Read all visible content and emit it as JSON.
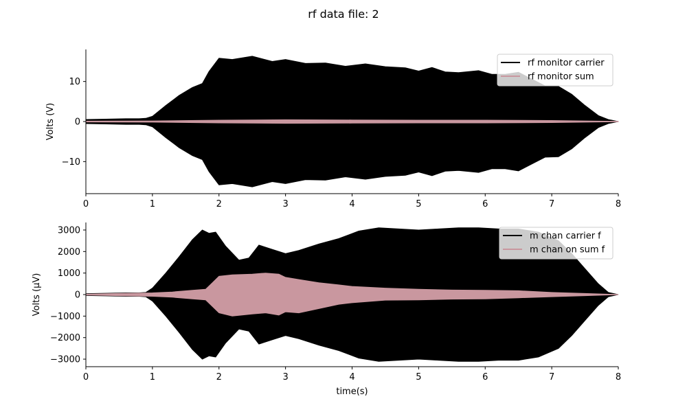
{
  "figure": {
    "title": "rf data file: 2"
  },
  "colors": {
    "carrier": "#000000",
    "sum": "#c9979f",
    "legend_frame": "#cccccc"
  },
  "chart_data": [
    {
      "type": "area",
      "ylabel": "Volts (V)",
      "xlabel": "",
      "xlim": [
        0,
        8
      ],
      "ylim": [
        -18,
        18
      ],
      "xticks": [
        0,
        1,
        2,
        3,
        4,
        5,
        6,
        7,
        8
      ],
      "yticks": [
        -10,
        0,
        10
      ],
      "ytick_labels": [
        "−10",
        "0",
        "10"
      ],
      "grid": false,
      "legend_position": "top-right",
      "series": [
        {
          "name": "rf monitor carrier",
          "color": "#000000",
          "x": [
            0,
            0.3,
            0.6,
            0.8,
            0.9,
            1.0,
            1.2,
            1.4,
            1.6,
            1.75,
            1.85,
            2.0,
            2.2,
            2.5,
            2.8,
            3.0,
            3.3,
            3.6,
            3.9,
            4.2,
            4.5,
            4.8,
            5.0,
            5.2,
            5.4,
            5.6,
            5.9,
            6.1,
            6.3,
            6.5,
            6.7,
            6.9,
            7.1,
            7.3,
            7.5,
            7.7,
            7.85,
            8.0
          ],
          "upper": [
            0.5,
            0.6,
            0.7,
            0.7,
            0.8,
            1.3,
            4.0,
            6.5,
            8.5,
            9.5,
            12.5,
            15.8,
            15.5,
            16.3,
            15.0,
            15.5,
            14.5,
            14.6,
            13.8,
            14.4,
            13.7,
            13.4,
            12.6,
            13.5,
            12.4,
            12.2,
            12.7,
            11.8,
            11.8,
            12.3,
            10.6,
            8.9,
            8.8,
            6.8,
            4.0,
            1.5,
            0.5,
            0.0
          ],
          "lower": [
            -0.5,
            -0.6,
            -0.7,
            -0.7,
            -0.8,
            -1.3,
            -4.0,
            -6.5,
            -8.5,
            -9.5,
            -12.5,
            -15.8,
            -15.5,
            -16.3,
            -15.0,
            -15.5,
            -14.5,
            -14.6,
            -13.8,
            -14.4,
            -13.7,
            -13.4,
            -12.6,
            -13.5,
            -12.4,
            -12.2,
            -12.7,
            -11.8,
            -11.8,
            -12.3,
            -10.6,
            -8.9,
            -8.8,
            -6.8,
            -4.0,
            -1.5,
            -0.5,
            0.0
          ]
        },
        {
          "name": "rf monitor sum",
          "color": "#c9979f",
          "x": [
            0,
            1,
            2,
            3,
            4,
            5,
            6,
            7,
            8
          ],
          "upper": [
            0.1,
            0.15,
            0.35,
            0.45,
            0.4,
            0.35,
            0.35,
            0.25,
            0.05
          ],
          "lower": [
            -0.1,
            -0.15,
            -0.35,
            -0.45,
            -0.4,
            -0.35,
            -0.35,
            -0.25,
            -0.05
          ]
        }
      ]
    },
    {
      "type": "area",
      "ylabel": "Volts (μV)",
      "xlabel": "time(s)",
      "xlim": [
        0,
        8
      ],
      "ylim": [
        -3350,
        3350
      ],
      "xticks": [
        0,
        1,
        2,
        3,
        4,
        5,
        6,
        7,
        8
      ],
      "yticks": [
        -3000,
        -2000,
        -1000,
        0,
        1000,
        2000,
        3000
      ],
      "ytick_labels": [
        "−3000",
        "−2000",
        "−1000",
        "0",
        "1000",
        "2000",
        "3000"
      ],
      "grid": false,
      "legend_position": "top-right",
      "series": [
        {
          "name": "m chan carrier f",
          "color": "#000000",
          "x": [
            0,
            0.3,
            0.6,
            0.8,
            0.9,
            1.0,
            1.2,
            1.4,
            1.6,
            1.75,
            1.85,
            1.95,
            2.1,
            2.3,
            2.45,
            2.6,
            2.8,
            3.0,
            3.2,
            3.5,
            3.8,
            4.1,
            4.4,
            4.7,
            5.0,
            5.3,
            5.6,
            5.9,
            6.2,
            6.5,
            6.8,
            7.1,
            7.3,
            7.5,
            7.7,
            7.85,
            8.0
          ],
          "upper": [
            40,
            60,
            80,
            80,
            100,
            300,
            1000,
            1750,
            2550,
            3000,
            2850,
            2900,
            2250,
            1600,
            1700,
            2300,
            2100,
            1900,
            2050,
            2350,
            2600,
            2950,
            3100,
            3050,
            3000,
            3050,
            3100,
            3100,
            3050,
            3050,
            2900,
            2500,
            1900,
            1200,
            500,
            100,
            0
          ],
          "lower": [
            -40,
            -60,
            -80,
            -80,
            -100,
            -300,
            -1000,
            -1750,
            -2550,
            -3000,
            -2850,
            -2900,
            -2250,
            -1600,
            -1700,
            -2300,
            -2100,
            -1900,
            -2050,
            -2350,
            -2600,
            -2950,
            -3100,
            -3050,
            -3000,
            -3050,
            -3100,
            -3100,
            -3050,
            -3050,
            -2900,
            -2500,
            -1900,
            -1200,
            -500,
            -100,
            0
          ]
        },
        {
          "name": "m chan on sum f",
          "color": "#c9979f",
          "x": [
            0,
            0.5,
            1.0,
            1.3,
            1.6,
            1.8,
            1.9,
            2.0,
            2.2,
            2.5,
            2.7,
            2.9,
            3.0,
            3.2,
            3.5,
            3.8,
            4.0,
            4.5,
            5.0,
            5.5,
            6.0,
            6.5,
            7.0,
            7.5,
            8.0
          ],
          "upper": [
            20,
            50,
            80,
            120,
            200,
            250,
            550,
            850,
            920,
            950,
            1000,
            950,
            800,
            700,
            550,
            450,
            380,
            300,
            250,
            210,
            200,
            180,
            100,
            50,
            0
          ],
          "lower": [
            -20,
            -50,
            -80,
            -120,
            -200,
            -250,
            -550,
            -850,
            -1000,
            -900,
            -850,
            -950,
            -800,
            -850,
            -650,
            -450,
            -380,
            -260,
            -250,
            -210,
            -200,
            -150,
            -100,
            -50,
            0
          ]
        }
      ]
    }
  ]
}
